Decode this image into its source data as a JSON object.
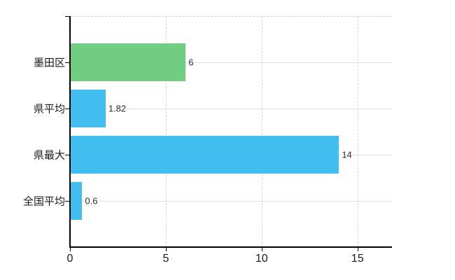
{
  "chart_data": {
    "type": "bar",
    "orientation": "horizontal",
    "title": "",
    "categories": [
      "墨田区",
      "県平均",
      "県最大",
      "全国平均"
    ],
    "series": [
      {
        "name": "value",
        "values": [
          6,
          1.82,
          14,
          0.6
        ]
      }
    ],
    "value_labels": [
      "6",
      "1.82",
      "14",
      "0.6"
    ],
    "bar_colors": [
      "#70cd82",
      "#41bdf0",
      "#41bdf0",
      "#41bdf0"
    ],
    "x_axis": {
      "ticks": [
        "0",
        "5",
        "10",
        "15"
      ],
      "tick_values": [
        0,
        5,
        10,
        15
      ],
      "range": [
        0,
        16.8
      ]
    },
    "legend_position": "none",
    "grid": {
      "vertical": "dashed",
      "horizontal": "solid",
      "top_border": "dashed"
    },
    "colors": {
      "highlight_bar": "#70cd82",
      "default_bar": "#41bdf0",
      "axis_line": "#000000",
      "vertical_gridline": "#d7d7d7",
      "horizontal_gridline": "#dde2dd",
      "text": "#1a1a1a",
      "background": "#ffffff"
    }
  }
}
